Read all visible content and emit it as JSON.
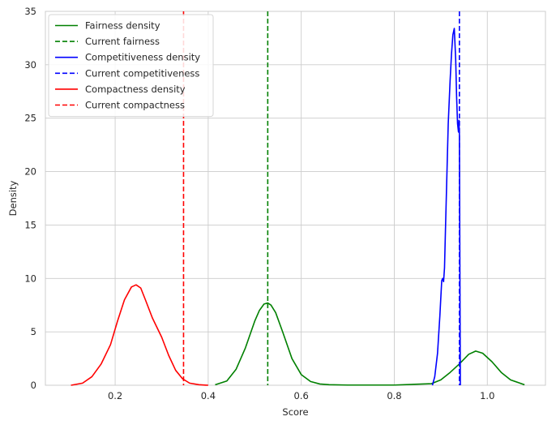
{
  "chart_data": {
    "type": "line",
    "title": "",
    "xlabel": "Score",
    "ylabel": "Density",
    "xlim": [
      0.05,
      1.125
    ],
    "ylim": [
      0,
      35
    ],
    "xticks": [
      0.2,
      0.4,
      0.6,
      0.8,
      1.0
    ],
    "xtick_labels": [
      "0.2",
      "0.4",
      "0.6",
      "0.8",
      "1.0"
    ],
    "yticks": [
      0,
      5,
      10,
      15,
      20,
      25,
      30,
      35
    ],
    "ytick_labels": [
      "0",
      "5",
      "10",
      "15",
      "20",
      "25",
      "30",
      "35"
    ],
    "grid": true,
    "legend_position": "top-left",
    "series": [
      {
        "name": "Fairness density",
        "color": "#008000",
        "style": "solid",
        "x": [
          0.415,
          0.44,
          0.46,
          0.48,
          0.5,
          0.51,
          0.52,
          0.528,
          0.535,
          0.545,
          0.56,
          0.58,
          0.6,
          0.62,
          0.64,
          0.66,
          0.7,
          0.8,
          0.88,
          0.9,
          0.92,
          0.94,
          0.96,
          0.975,
          0.99,
          1.01,
          1.03,
          1.05,
          1.08
        ],
        "y": [
          0.05,
          0.4,
          1.5,
          3.5,
          6.0,
          7.0,
          7.6,
          7.7,
          7.5,
          6.8,
          5.0,
          2.5,
          1.0,
          0.35,
          0.12,
          0.05,
          0.02,
          0.02,
          0.15,
          0.5,
          1.2,
          2.0,
          2.9,
          3.2,
          3.0,
          2.2,
          1.2,
          0.5,
          0.05
        ]
      },
      {
        "name": "Current fairness",
        "color": "#008000",
        "style": "dashed",
        "vline_x": 0.528
      },
      {
        "name": "Competitiveness density",
        "color": "#0000ff",
        "style": "solid",
        "x": [
          0.882,
          0.887,
          0.893,
          0.898,
          0.902,
          0.904,
          0.906,
          0.908,
          0.91,
          0.913,
          0.916,
          0.92,
          0.923,
          0.926,
          0.929,
          0.932,
          0.934,
          0.936,
          0.938,
          0.939,
          0.94,
          0.941,
          0.942
        ],
        "y": [
          0.0,
          0.8,
          3.0,
          6.5,
          9.8,
          10.0,
          9.7,
          11.0,
          14.5,
          19.5,
          24.5,
          28.5,
          31.0,
          32.8,
          33.4,
          30.5,
          27.0,
          24.5,
          23.7,
          24.8,
          23.5,
          12.0,
          0.0
        ]
      },
      {
        "name": "Current competitiveness",
        "color": "#0000ff",
        "style": "dashed",
        "vline_x": 0.94
      },
      {
        "name": "Compactness density",
        "color": "#ff0000",
        "style": "solid",
        "x": [
          0.105,
          0.13,
          0.15,
          0.17,
          0.19,
          0.205,
          0.22,
          0.235,
          0.245,
          0.255,
          0.265,
          0.28,
          0.3,
          0.315,
          0.33,
          0.345,
          0.36,
          0.38,
          0.4
        ],
        "y": [
          0.0,
          0.2,
          0.8,
          2.0,
          3.8,
          6.0,
          8.0,
          9.2,
          9.4,
          9.1,
          8.0,
          6.3,
          4.5,
          2.8,
          1.4,
          0.6,
          0.2,
          0.05,
          0.0
        ]
      },
      {
        "name": "Current compactness",
        "color": "#ff0000",
        "style": "dashed",
        "vline_x": 0.347
      }
    ]
  }
}
